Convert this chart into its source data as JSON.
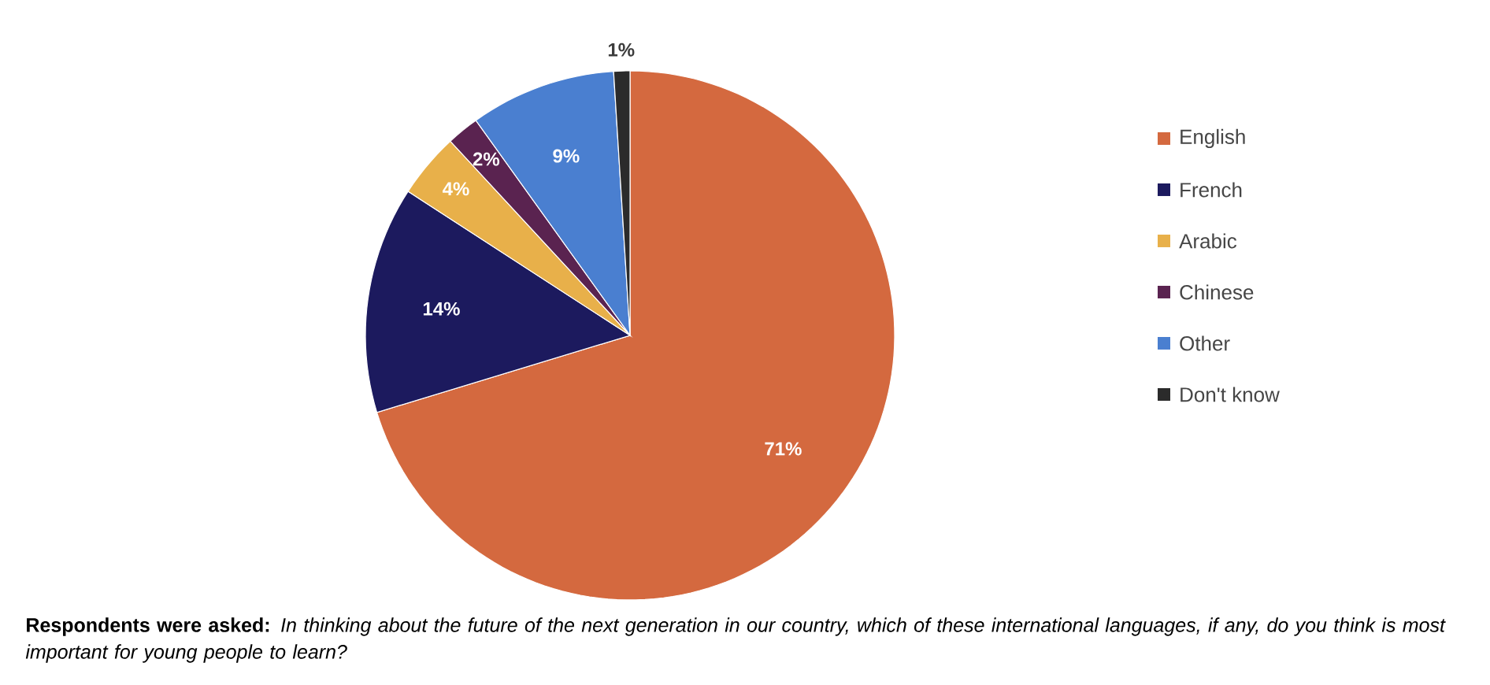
{
  "chart_data": {
    "type": "pie",
    "categories": [
      "English",
      "French",
      "Arabic",
      "Chinese",
      "Other",
      "Don't know"
    ],
    "values": [
      71,
      14,
      4,
      2,
      9,
      1
    ],
    "colors": [
      "#d4693f",
      "#1c1a5e",
      "#e8b04a",
      "#5a2350",
      "#4a7fd0",
      "#2b2b2b"
    ],
    "value_labels": [
      "71%",
      "14%",
      "4%",
      "2%",
      "9%",
      "1%"
    ],
    "legend": "right",
    "annotations": [
      "**Respondents were asked:** *In thinking about the future of the next generation in our country, which of these international languages, if any, do you think is most important for young people to learn?*"
    ]
  }
}
